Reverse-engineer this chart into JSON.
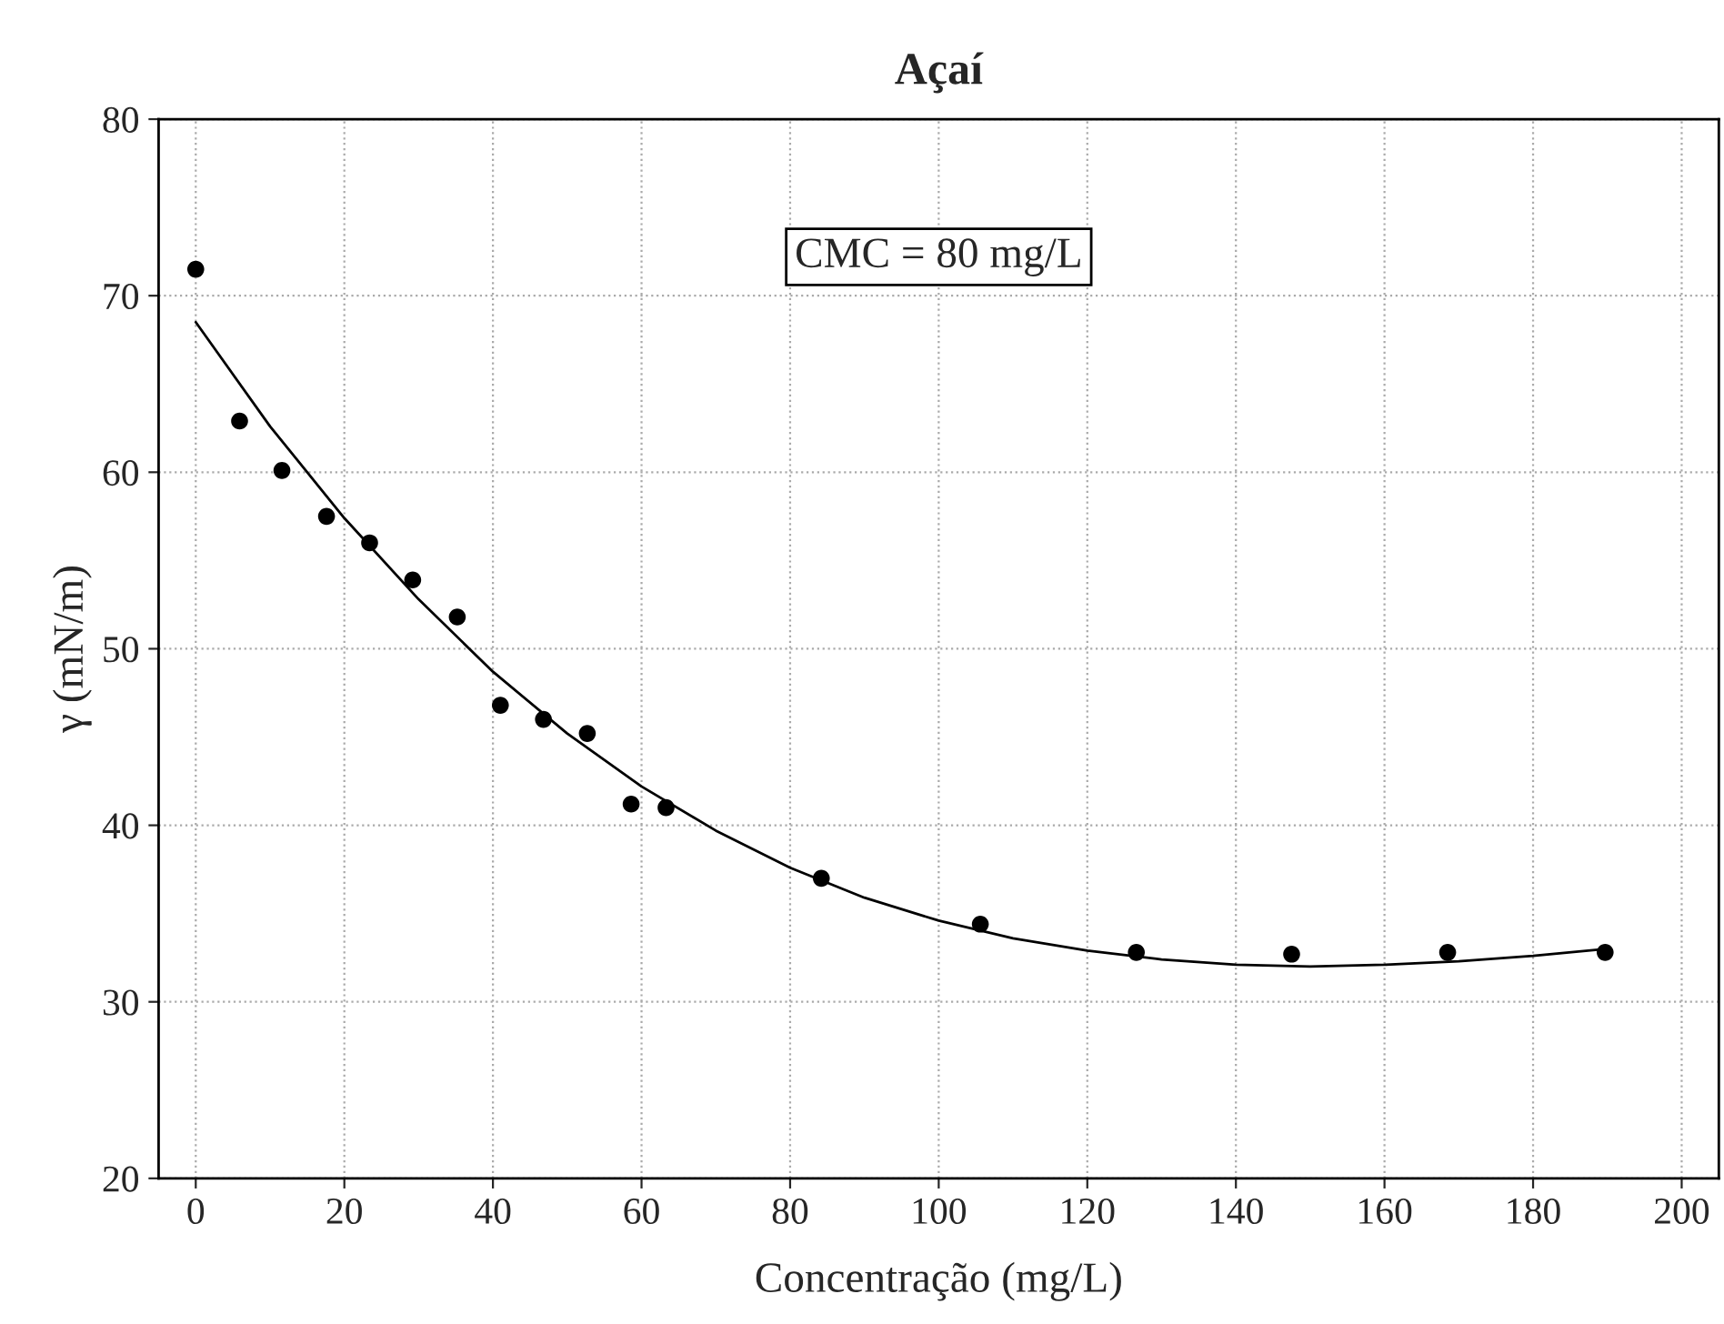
{
  "chart_data": {
    "type": "scatter",
    "title": "Açaí",
    "xlabel": "Concentração (mg/L)",
    "ylabel": "γ (mN/m)",
    "annotations": [
      "CMC = 80 mg/L"
    ],
    "series": [
      {
        "color": "#000000",
        "marker": "circle",
        "x": [
          0,
          5.9,
          11.6,
          17.6,
          23.4,
          29.2,
          35.2,
          41,
          46.8,
          52.7,
          58.6,
          63.3,
          84.2,
          105.6,
          126.6,
          147.5,
          168.5,
          189.7
        ],
        "values": [
          71.5,
          62.9,
          60.1,
          57.5,
          56.0,
          53.9,
          51.8,
          46.8,
          46.0,
          45.2,
          41.2,
          41.0,
          37.0,
          34.4,
          32.8,
          32.7,
          32.8,
          32.8
        ]
      },
      {
        "type": "line",
        "color": "#000000",
        "marker": "none",
        "line_style": "solid",
        "x": [
          0,
          10,
          20,
          30,
          40,
          50,
          60,
          70,
          80,
          90,
          100,
          110,
          120,
          130,
          140,
          150,
          160,
          170,
          180,
          190
        ],
        "values": [
          68.5,
          62.6,
          57.4,
          52.8,
          48.7,
          45.2,
          42.2,
          39.7,
          37.6,
          35.9,
          34.6,
          33.6,
          32.9,
          32.4,
          32.1,
          32.0,
          32.1,
          32.3,
          32.6,
          33.0
        ]
      }
    ],
    "xlim": [
      -5,
      205
    ],
    "ylim": [
      20,
      80
    ],
    "xticks": [
      0,
      20,
      40,
      60,
      80,
      100,
      120,
      140,
      160,
      180,
      200
    ],
    "yticks": [
      20,
      30,
      40,
      50,
      60,
      70,
      80
    ],
    "grid": true,
    "legend": false
  }
}
